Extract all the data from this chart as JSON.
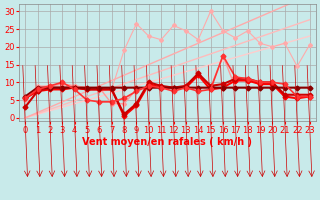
{
  "background_color": "#c8eaea",
  "grid_color": "#aaaaaa",
  "xlabel": "Vent moyen/en rafales ( km/h )",
  "xlabel_color": "#ff0000",
  "ylabel_ticks": [
    0,
    5,
    10,
    15,
    20,
    25,
    30
  ],
  "xticks": [
    0,
    1,
    2,
    3,
    4,
    5,
    6,
    7,
    8,
    9,
    10,
    11,
    12,
    13,
    14,
    15,
    16,
    17,
    18,
    19,
    20,
    21,
    22,
    23
  ],
  "xlim": [
    -0.5,
    23.5
  ],
  "ylim": [
    -1,
    32
  ],
  "tick_color": "#ff0000",
  "lines": [
    {
      "x": [
        0,
        1,
        2,
        3,
        4,
        5,
        6,
        7,
        8,
        9,
        10,
        11,
        12,
        13,
        14,
        15,
        16,
        17,
        18,
        19,
        20,
        21,
        22,
        23
      ],
      "y": [
        0.0,
        1.0,
        2.0,
        3.0,
        4.0,
        5.0,
        6.0,
        7.0,
        8.0,
        9.0,
        10.0,
        11.0,
        12.0,
        13.0,
        14.0,
        15.0,
        16.0,
        17.0,
        18.0,
        19.0,
        20.0,
        21.0,
        22.0,
        23.0
      ],
      "color": "#ffcccc",
      "lw": 1.0,
      "marker": null,
      "ms": 0
    },
    {
      "x": [
        0,
        1,
        2,
        3,
        4,
        5,
        6,
        7,
        8,
        9,
        10,
        11,
        12,
        13,
        14,
        15,
        16,
        17,
        18,
        19,
        20,
        21,
        22,
        23
      ],
      "y": [
        0.0,
        1.2,
        2.4,
        3.6,
        4.8,
        6.0,
        7.2,
        8.4,
        9.6,
        10.8,
        12.0,
        13.2,
        14.4,
        15.6,
        16.8,
        18.0,
        19.2,
        20.4,
        21.6,
        22.8,
        24.0,
        25.2,
        26.4,
        27.6
      ],
      "color": "#ffbbbb",
      "lw": 1.0,
      "marker": null,
      "ms": 0
    },
    {
      "x": [
        0,
        1,
        2,
        3,
        4,
        5,
        6,
        7,
        8,
        9,
        10,
        11,
        12,
        13,
        14,
        15,
        16,
        17,
        18,
        19,
        20,
        21,
        22,
        23
      ],
      "y": [
        0.0,
        1.5,
        3.0,
        4.5,
        6.0,
        7.5,
        9.0,
        10.5,
        12.0,
        13.5,
        15.0,
        16.5,
        18.0,
        19.5,
        21.0,
        22.5,
        24.0,
        25.5,
        27.0,
        28.5,
        30.0,
        31.5,
        33.0,
        34.5
      ],
      "color": "#ffaaaa",
      "lw": 1.0,
      "marker": null,
      "ms": 0
    },
    {
      "x": [
        0,
        1,
        2,
        3,
        4,
        5,
        6,
        7,
        8,
        9,
        10,
        11,
        12,
        13,
        14,
        15,
        16,
        17,
        18,
        19,
        20,
        21,
        22,
        23
      ],
      "y": [
        5.5,
        9.0,
        9.0,
        9.5,
        9.0,
        8.5,
        8.0,
        8.0,
        19.0,
        26.5,
        23.0,
        22.0,
        26.0,
        24.5,
        22.0,
        30.0,
        24.5,
        22.5,
        24.5,
        21.0,
        20.0,
        21.0,
        14.5,
        20.5
      ],
      "color": "#ffaaaa",
      "lw": 0.8,
      "marker": "D",
      "ms": 2.0
    },
    {
      "x": [
        0,
        1,
        2,
        3,
        4,
        5,
        6,
        7,
        8,
        9,
        10,
        11,
        12,
        13,
        14,
        15,
        16,
        17,
        18,
        19,
        20,
        21,
        22,
        23
      ],
      "y": [
        5.0,
        8.5,
        9.0,
        9.5,
        9.0,
        8.5,
        8.5,
        4.0,
        4.0,
        8.0,
        8.5,
        8.5,
        8.5,
        8.5,
        8.5,
        8.5,
        17.5,
        8.5,
        8.5,
        8.5,
        8.5,
        8.5,
        8.5,
        8.5
      ],
      "color": "#ff9999",
      "lw": 1.0,
      "marker": "D",
      "ms": 2.0
    },
    {
      "x": [
        0,
        1,
        2,
        3,
        4,
        5,
        6,
        7,
        8,
        9,
        10,
        11,
        12,
        13,
        14,
        15,
        16,
        17,
        18,
        19,
        20,
        21,
        22,
        23
      ],
      "y": [
        5.5,
        7.5,
        8.0,
        8.0,
        8.5,
        8.0,
        8.0,
        8.0,
        0.5,
        3.5,
        9.5,
        8.5,
        8.5,
        8.5,
        12.0,
        8.0,
        8.5,
        10.5,
        10.5,
        9.5,
        9.5,
        6.0,
        5.5,
        6.0
      ],
      "color": "#ff0000",
      "lw": 1.5,
      "marker": "D",
      "ms": 2.5
    },
    {
      "x": [
        0,
        1,
        2,
        3,
        4,
        5,
        6,
        7,
        8,
        9,
        10,
        11,
        12,
        13,
        14,
        15,
        16,
        17,
        18,
        19,
        20,
        21,
        22,
        23
      ],
      "y": [
        3.0,
        7.5,
        8.5,
        8.5,
        8.5,
        8.0,
        8.0,
        8.0,
        1.0,
        4.0,
        10.0,
        9.0,
        8.5,
        9.0,
        12.5,
        9.0,
        9.5,
        11.0,
        11.0,
        10.0,
        10.0,
        6.5,
        6.5,
        6.5
      ],
      "color": "#cc0000",
      "lw": 1.5,
      "marker": "D",
      "ms": 2.5
    },
    {
      "x": [
        0,
        1,
        2,
        3,
        4,
        5,
        6,
        7,
        8,
        9,
        10,
        11,
        12,
        13,
        14,
        15,
        16,
        17,
        18,
        19,
        20,
        21,
        22,
        23
      ],
      "y": [
        6.0,
        8.5,
        8.5,
        8.5,
        8.5,
        8.5,
        8.5,
        8.5,
        8.5,
        8.5,
        8.5,
        8.5,
        8.5,
        8.5,
        8.5,
        8.5,
        8.5,
        8.5,
        8.5,
        8.5,
        8.5,
        8.5,
        8.5,
        8.5
      ],
      "color": "#880000",
      "lw": 1.5,
      "marker": "D",
      "ms": 2.5
    },
    {
      "x": [
        0,
        1,
        2,
        3,
        4,
        5,
        6,
        7,
        8,
        9,
        10,
        11,
        12,
        13,
        14,
        15,
        16,
        17,
        18,
        19,
        20,
        21,
        22,
        23
      ],
      "y": [
        5.5,
        8.0,
        9.0,
        10.0,
        8.0,
        5.0,
        4.5,
        4.5,
        5.5,
        7.5,
        9.0,
        8.5,
        7.5,
        8.5,
        7.5,
        8.0,
        17.5,
        11.5,
        11.0,
        10.0,
        10.0,
        9.5,
        6.0,
        6.0
      ],
      "color": "#ff3333",
      "lw": 1.2,
      "marker": "D",
      "ms": 2.5
    }
  ],
  "tick_fontsize": 6,
  "xlabel_fontsize": 7,
  "arrow_color": "#cc0000"
}
